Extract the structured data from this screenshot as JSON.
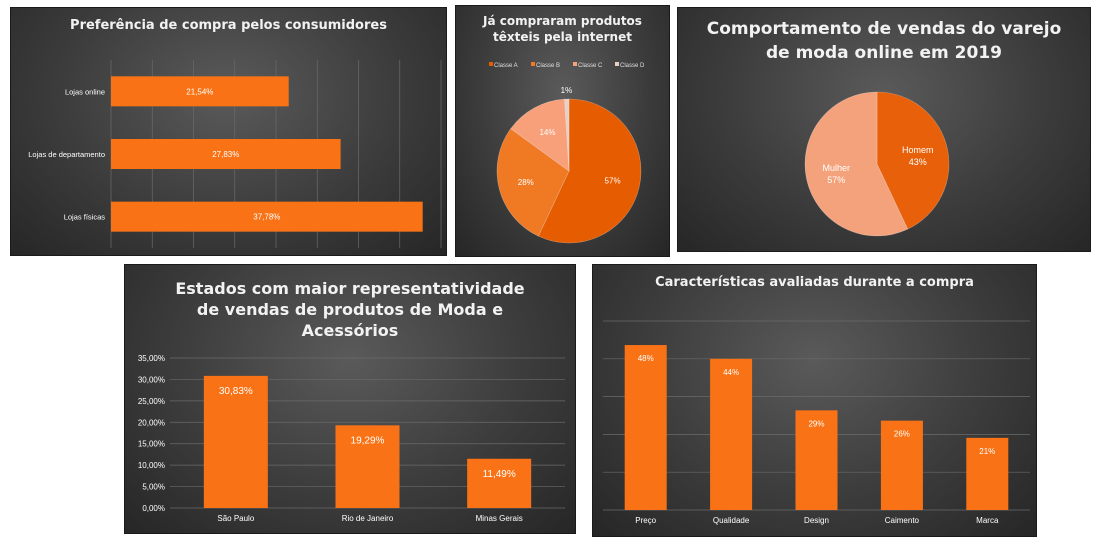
{
  "colors": {
    "bar": "#f97316",
    "bar_light": "#fb8c3c",
    "pie_a": "#e65c00",
    "pie_b": "#f07a24",
    "pie_c": "#f7a07a",
    "pie_d": "#e8d0c8",
    "pie_mulher": "#f4a27c",
    "pie_homem": "#e8600a",
    "grid": "#6a6a6a",
    "text": "#ffffff"
  },
  "charts": {
    "c1": {
      "title": "Preferência de compra pelos consumidores",
      "chart_data": {
        "type": "bar",
        "orientation": "horizontal",
        "categories": [
          "Lojas online",
          "Lojas de departamento",
          "Lojas físicas"
        ],
        "values": [
          21.54,
          27.83,
          37.78
        ],
        "value_labels": [
          "21,54%",
          "27,83%",
          "37,78%"
        ],
        "xlim": [
          0,
          40
        ],
        "grid": true
      }
    },
    "c2": {
      "title": "Já compraram produtos\ntêxteis pela internet",
      "chart_data": {
        "type": "pie",
        "labels": [
          "Classe A",
          "Classe B",
          "Classe C",
          "Classe D"
        ],
        "values": [
          57,
          28,
          14,
          1
        ],
        "value_labels": [
          "57%",
          "28%",
          "14%",
          "1%"
        ],
        "legend": "top"
      }
    },
    "c3": {
      "title": "Comportamento de vendas do varejo\nde moda online em 2019",
      "chart_data": {
        "type": "pie",
        "labels": [
          "Homem",
          "Mulher"
        ],
        "values": [
          43,
          57
        ],
        "value_labels": [
          "43%",
          "57%"
        ]
      }
    },
    "c4": {
      "title": "Estados com maior representatividade\nde vendas de produtos de Moda e\nAcessórios",
      "chart_data": {
        "type": "bar",
        "categories": [
          "São Paulo",
          "Rio de Janeiro",
          "Minas Gerais"
        ],
        "values": [
          30.83,
          19.29,
          11.49
        ],
        "value_labels": [
          "30,83%",
          "19,29%",
          "11,49%"
        ],
        "ylim": [
          0,
          35
        ],
        "yticks": [
          "0,00%",
          "5,00%",
          "10,00%",
          "15,00%",
          "20,00%",
          "25,00%",
          "30,00%",
          "35,00%"
        ],
        "grid": true
      }
    },
    "c5": {
      "title": "Características avaliadas durante a compra",
      "chart_data": {
        "type": "bar",
        "categories": [
          "Preço",
          "Qualidade",
          "Design",
          "Caimento",
          "Marca"
        ],
        "values": [
          48,
          44,
          29,
          26,
          21
        ],
        "value_labels": [
          "48%",
          "44%",
          "29%",
          "26%",
          "21%"
        ],
        "ylim": [
          0,
          55
        ],
        "grid": true
      }
    }
  }
}
